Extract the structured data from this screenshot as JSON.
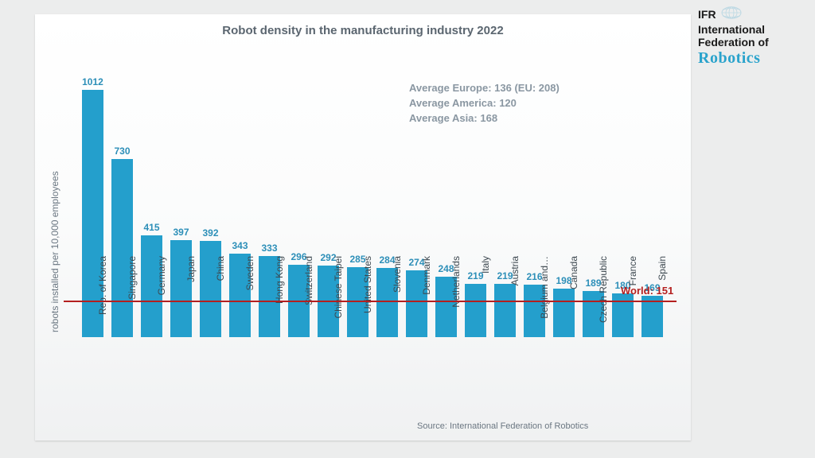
{
  "logo": {
    "line1": "IFR",
    "line2": "International",
    "line3": "Federation of",
    "line4": "Robotics",
    "text_color": "#1a1a1a",
    "accent_color": "#2aa3cc"
  },
  "chart": {
    "type": "bar",
    "title": "Robot density in the manufacturing industry 2022",
    "title_fontsize": 15,
    "title_color": "#5b6670",
    "y_axis_label": "robots installed per 10,000 employees",
    "y_axis_label_fontsize": 12,
    "y_axis_label_color": "#6b7782",
    "averages": [
      "Average Europe: 136  (EU: 208)",
      "Average America: 120",
      "Average Asia: 168"
    ],
    "averages_fontsize": 13,
    "averages_color": "#8a97a2",
    "world_line": {
      "label": "World: 151",
      "value": 151,
      "color": "#b41f1f",
      "width": 2,
      "label_fontsize": 13
    },
    "source": "Source: International Federation of Robotics",
    "source_fontsize": 11,
    "source_color": "#6b7782",
    "bar_color": "#249fcc",
    "value_label_color": "#2d8fb8",
    "value_label_fontsize": 12,
    "category_label_color": "#3d4850",
    "category_label_fontsize": 12,
    "background": "linear-gradient(180deg,#ffffff 0%,#fbfcfc 45%,#f0f1f2 100%)",
    "y_max": 1060,
    "bar_width_ratio": 0.74,
    "categories": [
      "Rep. of Korea",
      "Singapore",
      "Germany",
      "Japan",
      "China",
      "Sweden",
      "Hong Kong",
      "Switzerland",
      "Chinese Taipei",
      "United States",
      "Slovenia",
      "Denmark",
      "Netherlands",
      "Italy",
      "Austria",
      "Belgium and…",
      "Canada",
      "Czech Republic",
      "France",
      "Spain"
    ],
    "values": [
      1012,
      730,
      415,
      397,
      392,
      343,
      333,
      296,
      292,
      285,
      284,
      274,
      248,
      219,
      219,
      216,
      198,
      189,
      180,
      169
    ]
  }
}
